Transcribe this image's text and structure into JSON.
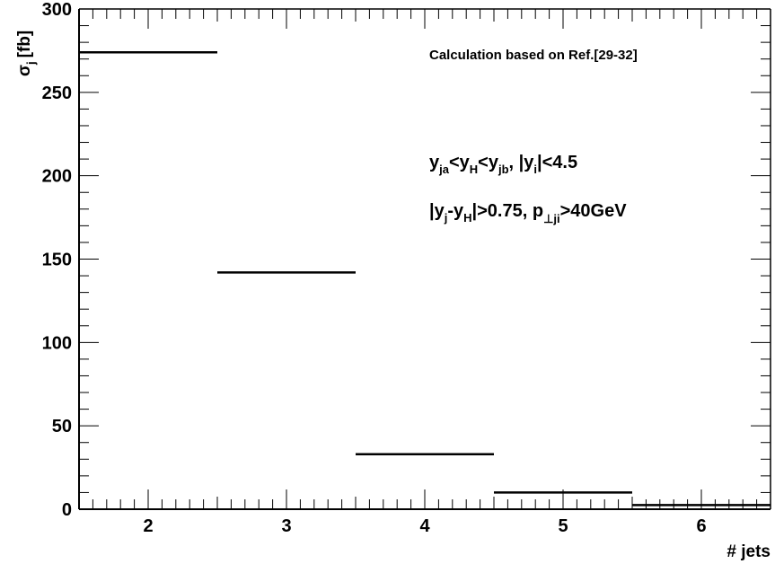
{
  "chart_data": {
    "type": "bar",
    "xlabel": "# jets",
    "ylabel": "σ_j [fb]",
    "ylabel_main": "σ",
    "ylabel_sub": "j",
    "ylabel_unit": "[fb]",
    "xlim": [
      1.5,
      6.5
    ],
    "ylim": [
      0,
      300
    ],
    "x_ticks": [
      2,
      3,
      4,
      5,
      6
    ],
    "y_ticks": [
      0,
      50,
      100,
      150,
      200,
      250,
      300
    ],
    "bins": [
      {
        "x_low": 1.5,
        "x_high": 2.5,
        "value": 274
      },
      {
        "x_low": 2.5,
        "x_high": 3.5,
        "value": 142
      },
      {
        "x_low": 3.5,
        "x_high": 4.5,
        "value": 33
      },
      {
        "x_low": 4.5,
        "x_high": 5.5,
        "value": 10
      },
      {
        "x_low": 5.5,
        "x_high": 6.5,
        "value": 2.5
      }
    ],
    "annotations": {
      "reference": "Calculation based on Ref.[29-32]",
      "cut_line1": "y_ja<y_H<y_jb, |y_i|<4.5",
      "cut_line2": "|y_j-y_H|>0.75, p_⊥ji>40GeV"
    },
    "annotation_parts": {
      "l1_y": "y",
      "l1_ja": "ja",
      "l1_lt1": "<y",
      "l1_H": "H",
      "l1_lt2": "<y",
      "l1_jb": "jb",
      "l1_mid": ", |y",
      "l1_i": "i",
      "l1_end": "|<4.5",
      "l2_a": "|y",
      "l2_j": "j",
      "l2_b": "-y",
      "l2_H": "H",
      "l2_c": "|>0.75, p",
      "l2_sub": "⊥ji",
      "l2_end": ">40GeV"
    },
    "grid": false,
    "legend": "none"
  }
}
